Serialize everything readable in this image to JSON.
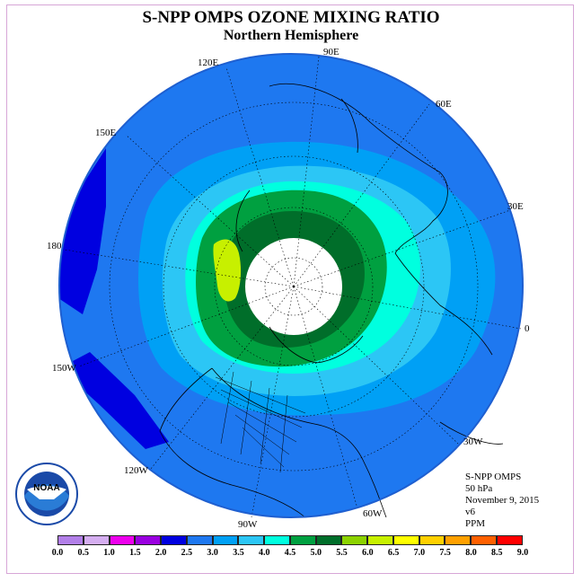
{
  "title": "S-NPP OMPS OZONE MIXING RATIO",
  "subtitle": "Northern Hemisphere",
  "logo": {
    "text": "NOAA",
    "ring_text": "NATIONAL OCEANIC AND ATMOSPHERIC ADMINISTRATION • U.S. DEPARTMENT OF COMMERCE"
  },
  "info": {
    "instrument": "S-NPP OMPS",
    "level": "50 hPa",
    "date": "November 9, 2015",
    "version": "v6",
    "units": "PPM"
  },
  "lon_labels": {
    "e90": "90E",
    "e120": "120E",
    "e60": "60E",
    "e150": "150E",
    "e30": "30E",
    "d180": "180",
    "d0": "0",
    "w150": "150W",
    "w30": "30W",
    "w120": "120W",
    "w60": "60W",
    "w90": "90W"
  },
  "colorbar": {
    "ticks": [
      "0.0",
      "0.5",
      "1.0",
      "1.5",
      "2.0",
      "2.5",
      "3.0",
      "3.5",
      "4.0",
      "4.5",
      "5.0",
      "5.5",
      "6.0",
      "6.5",
      "7.0",
      "7.5",
      "8.0",
      "8.5",
      "9.0"
    ],
    "colors": [
      "#b27fe8",
      "#d5aef0",
      "#ee00ee",
      "#9a00e0",
      "#0000e0",
      "#1e78f0",
      "#00a0f5",
      "#2cc6f5",
      "#00ffdf",
      "#00a040",
      "#006e2a",
      "#8cd200",
      "#c7f000",
      "#ffff00",
      "#ffd000",
      "#ffa000",
      "#ff6000",
      "#ff0000",
      "#8b5a2b"
    ]
  },
  "colors": {
    "outer": "#1e78f0",
    "deep_blue": "#0000e0",
    "light_blue": "#00a0f5",
    "cyan_light": "#2cc6f5",
    "aqua": "#00ffdf",
    "green": "#00a040",
    "dark_green": "#006e2a",
    "lime": "#c7f000",
    "polar_hole": "#ffffff"
  }
}
